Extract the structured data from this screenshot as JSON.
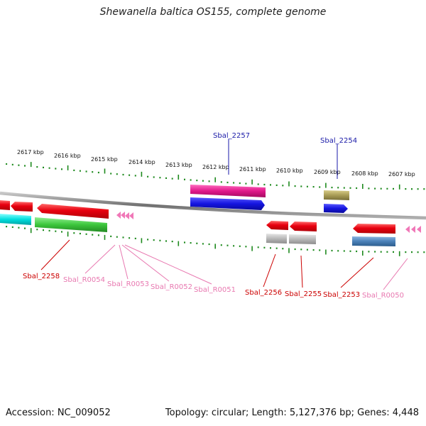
{
  "title": "Shewanella baltica OS155, complete genome",
  "footer": {
    "accession": "Accession: NC_009052",
    "summary": "Topology: circular; Length: 5,127,376 bp; Genes: 4,448"
  },
  "scale_ticks": [
    "2617 kbp",
    "2616 kbp",
    "2615 kbp",
    "2614 kbp",
    "2613 kbp",
    "2612 kbp",
    "2611 kbp",
    "2610 kbp",
    "2609 kbp",
    "2608 kbp",
    "2607 kbp"
  ],
  "gene_labels": {
    "sbal_2257": "Sbal_2257",
    "sbal_2254": "Sbal_2254",
    "sbal_2258": "Sbal_2258",
    "sbal_r0054": "Sbal_R0054",
    "sbal_r0053": "Sbal_R0053",
    "sbal_r0052": "Sbal_R0052",
    "sbal_r0051": "Sbal_R0051",
    "sbal_2256": "Sbal_2256",
    "sbal_2255": "Sbal_2255",
    "sbal_2253": "Sbal_2253",
    "sbal_r0050": "Sbal_R0050"
  },
  "colors": {
    "cds": "#e8000f",
    "cog_magenta": "#e0188a",
    "cog_blue": "#1515e0",
    "cog_cyan": "#00dede",
    "cog_green": "#3cc63c",
    "cog_olive": "#a89c55",
    "cog_gray": "#b8b8b8",
    "cog_steelblue": "#4a80b8",
    "rna": "#f078b8",
    "tick_green": "#1e8a1e",
    "backbone": "#808080",
    "label_blue": "#1a1aa8",
    "label_red": "#cc0000",
    "label_pink": "#e878b0"
  }
}
